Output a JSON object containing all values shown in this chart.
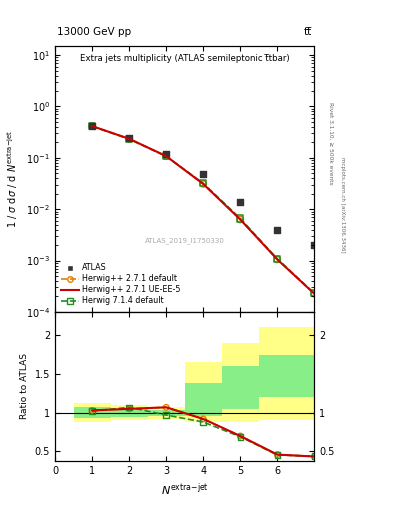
{
  "title_top_left": "13000 GeV pp",
  "title_top_right": "tt̅",
  "plot_title": "Extra jets multiplicity (ATLAS semileptonic t̅tbar)",
  "right_label1": "Rivet 3.1.10, ≥ 500k events",
  "right_label2": "mcplots.cern.ch [arXiv:1306.3436]",
  "watermark": "ATLAS_2019_I1750330",
  "atlas_x": [
    1,
    2,
    3,
    4,
    5,
    6,
    7
  ],
  "atlas_y": [
    0.42,
    0.245,
    0.118,
    0.048,
    0.014,
    0.004,
    0.002
  ],
  "hwpp271_default_x": [
    1,
    2,
    3,
    4,
    5,
    6,
    7
  ],
  "hwpp271_default_y": [
    0.415,
    0.235,
    0.108,
    0.031,
    0.0063,
    0.00105,
    0.000225
  ],
  "hwpp271_uee5_x": [
    1,
    2,
    3,
    4,
    5,
    6,
    7
  ],
  "hwpp271_uee5_y": [
    0.415,
    0.235,
    0.108,
    0.031,
    0.0063,
    0.00105,
    0.000225
  ],
  "hw714_default_x": [
    1,
    2,
    3,
    4,
    5,
    6,
    7
  ],
  "hw714_default_y": [
    0.412,
    0.232,
    0.107,
    0.032,
    0.0066,
    0.00108,
    0.00023
  ],
  "ratio_hwpp271_default": [
    1.03,
    1.05,
    1.07,
    0.92,
    0.7,
    0.46,
    0.435
  ],
  "ratio_hwpp271_uee5": [
    1.03,
    1.05,
    1.07,
    0.92,
    0.7,
    0.46,
    0.435
  ],
  "ratio_hw714_default": [
    1.02,
    1.07,
    0.97,
    0.88,
    0.69,
    0.455,
    0.44
  ],
  "ratio_x": [
    1,
    2,
    3,
    4,
    5,
    6,
    7
  ],
  "band_yellow_edges": [
    0.5,
    1.5,
    2.5,
    3.5,
    4.5,
    5.5,
    6.5,
    7.0
  ],
  "band_yellow_low": [
    0.88,
    0.9,
    0.92,
    0.88,
    0.88,
    0.9,
    0.9
  ],
  "band_yellow_high": [
    1.12,
    1.1,
    1.08,
    1.65,
    1.9,
    2.1,
    2.1
  ],
  "band_green_edges": [
    0.5,
    1.5,
    2.5,
    3.5,
    4.5,
    5.5,
    6.5,
    7.0
  ],
  "band_green_low": [
    0.93,
    0.95,
    0.96,
    0.96,
    1.05,
    1.2,
    1.2
  ],
  "band_green_high": [
    1.07,
    1.05,
    1.04,
    1.38,
    1.6,
    1.75,
    1.75
  ],
  "color_atlas": "#333333",
  "color_hwpp271_default": "#e08000",
  "color_hwpp271_uee5": "#cc0000",
  "color_hw714_default": "#228b22",
  "color_band_yellow": "#ffff88",
  "color_band_green": "#88ee88",
  "ylim_main": [
    0.0001,
    15
  ],
  "ylim_ratio": [
    0.38,
    2.3
  ],
  "xlim": [
    0,
    7.0
  ]
}
